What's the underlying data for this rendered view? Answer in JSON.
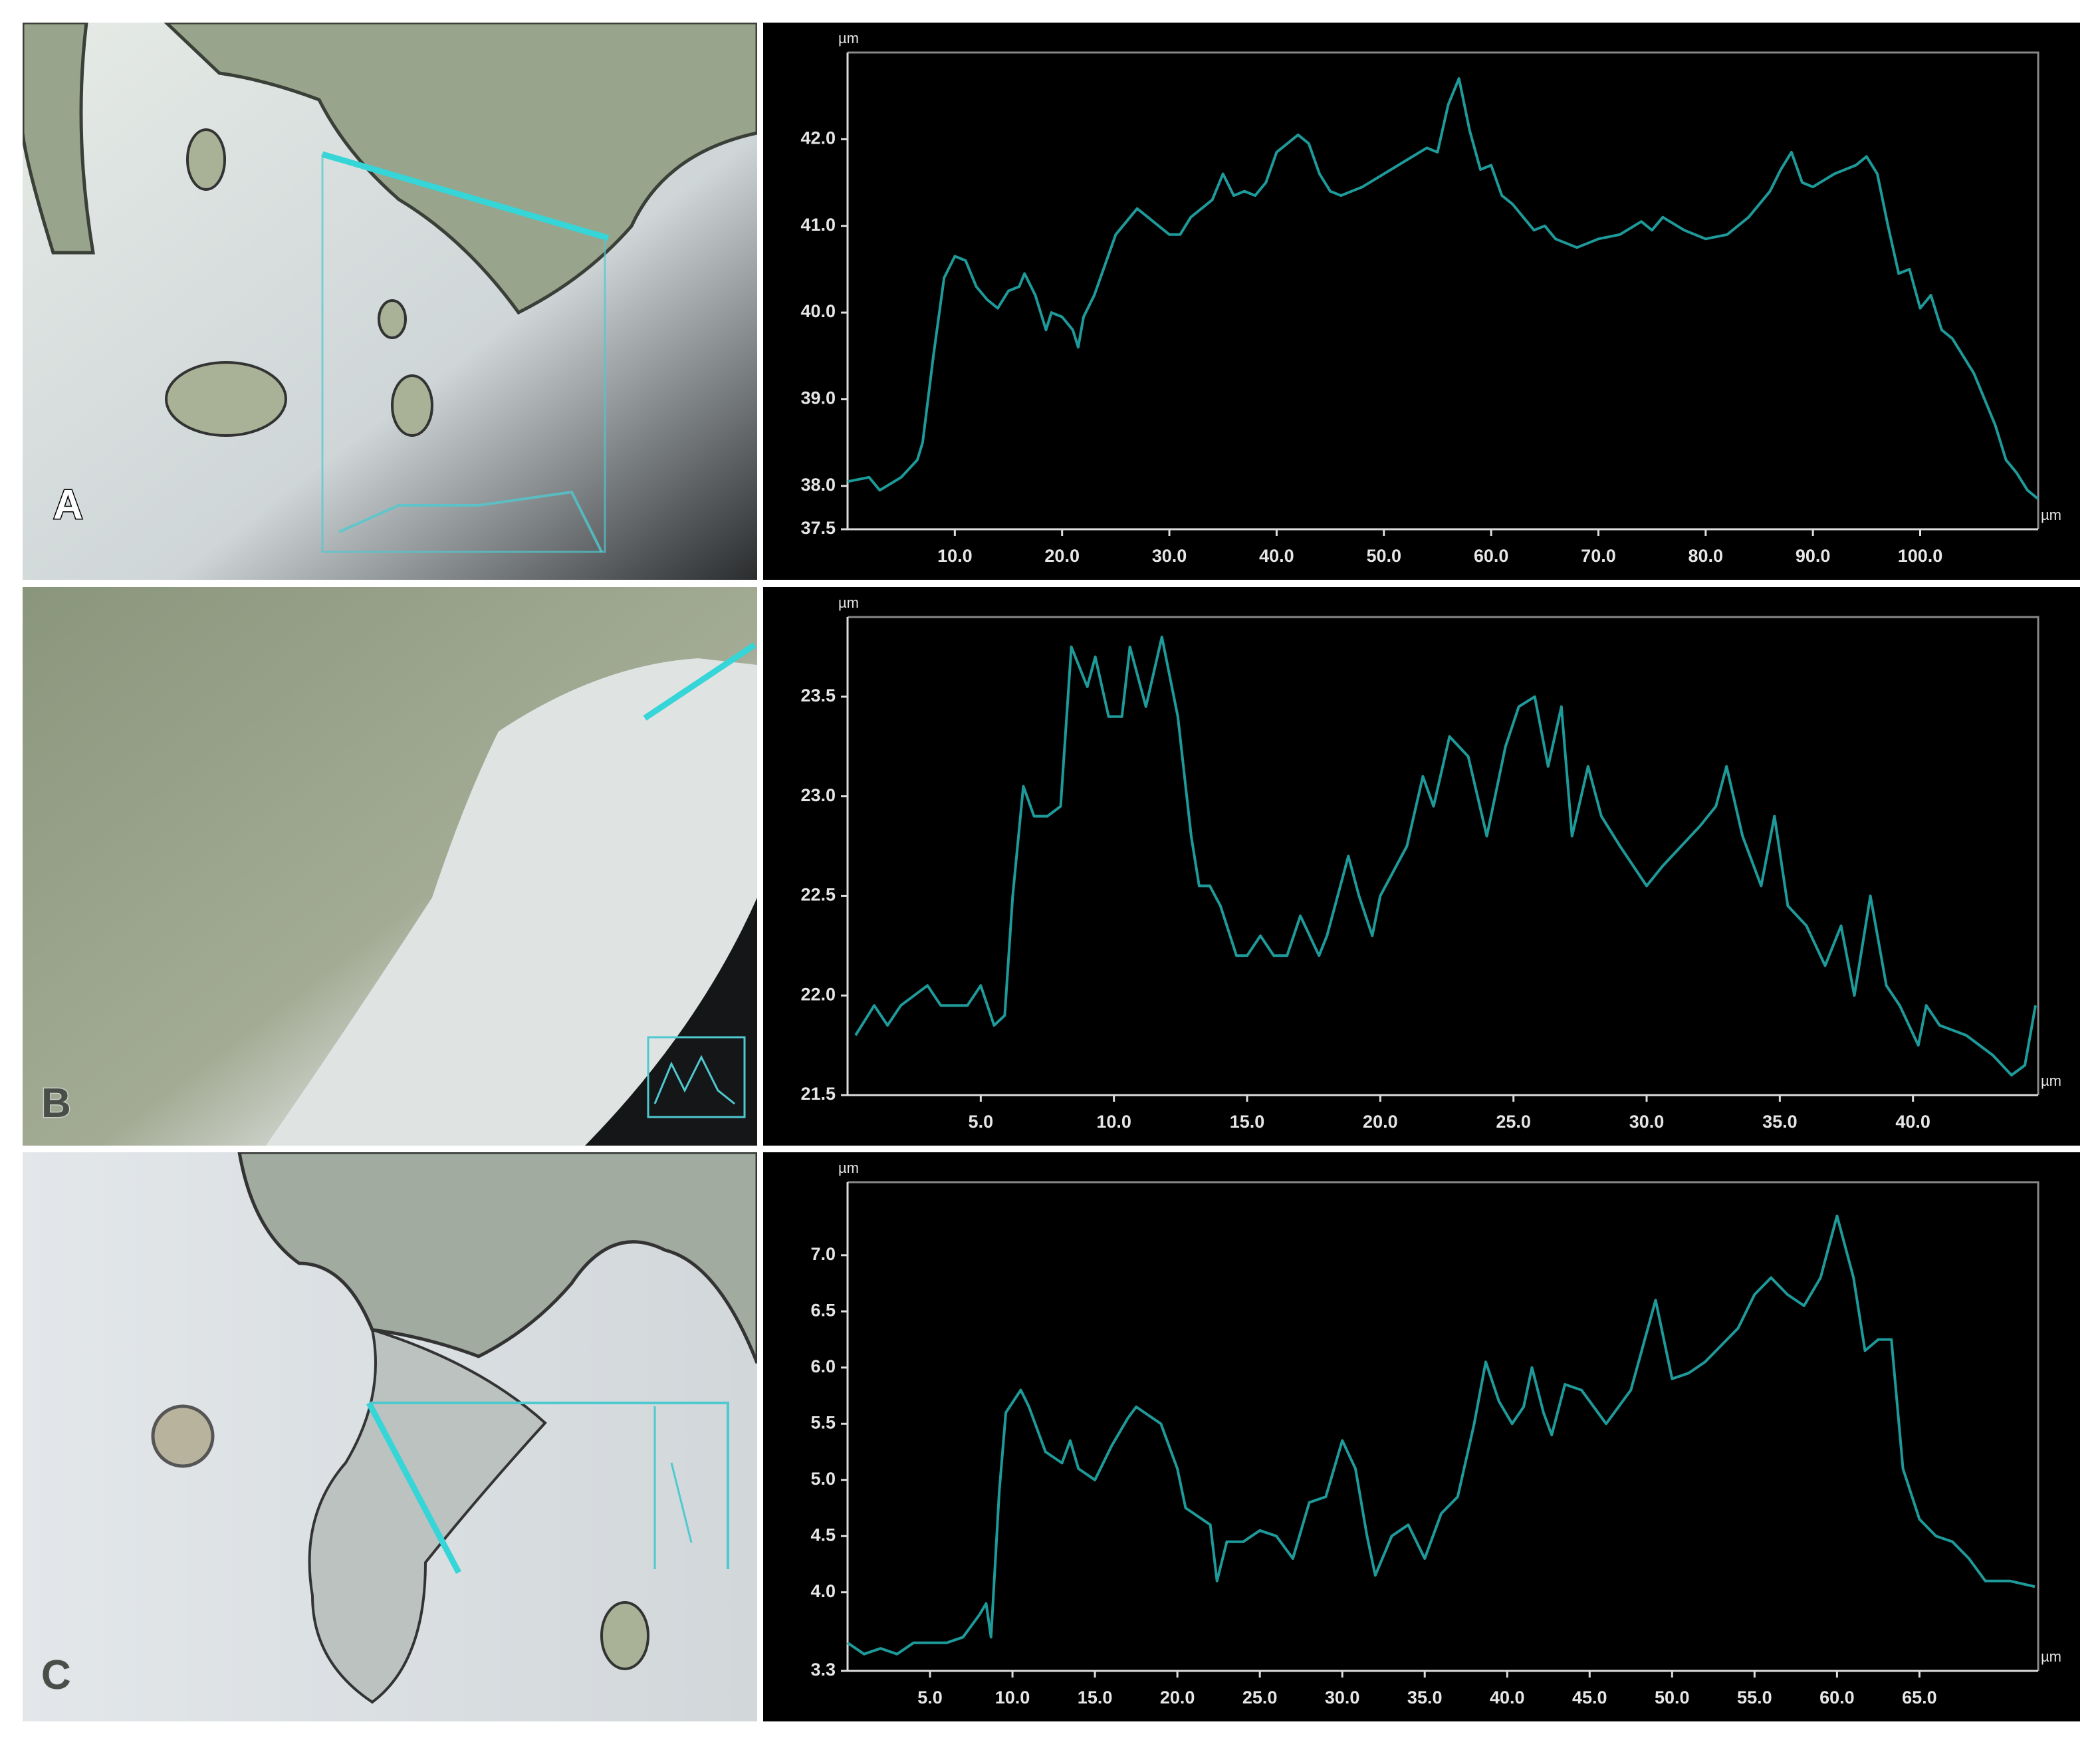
{
  "chart_data": [
    {
      "type": "line",
      "panel": "A",
      "y_label": "µm",
      "x_label": "µm",
      "color": "#1e9a9a",
      "xlim": [
        0,
        111
      ],
      "ylim": [
        37.5,
        43.0
      ],
      "xticks": [
        {
          "value": 10,
          "label": "10.0"
        },
        {
          "value": 20,
          "label": "20.0"
        },
        {
          "value": 30,
          "label": "30.0"
        },
        {
          "value": 40,
          "label": "40.0"
        },
        {
          "value": 50,
          "label": "50.0"
        },
        {
          "value": 60,
          "label": "60.0"
        },
        {
          "value": 70,
          "label": "70.0"
        },
        {
          "value": 80,
          "label": "80.0"
        },
        {
          "value": 90,
          "label": "90.0"
        },
        {
          "value": 100,
          "label": "100.0"
        }
      ],
      "yticks": [
        37.5,
        {
          "value": 38,
          "label": "38.0"
        },
        {
          "value": 39,
          "label": "39.0"
        },
        {
          "value": 40,
          "label": "40.0"
        },
        {
          "value": 41,
          "label": "41.0"
        },
        {
          "value": 42,
          "label": "42.0"
        }
      ],
      "x": [
        0,
        2,
        3,
        5,
        6.5,
        7,
        8,
        9,
        10,
        11,
        12,
        13,
        14,
        15,
        16,
        16.5,
        17.5,
        18.5,
        19,
        20,
        21,
        21.5,
        22,
        23,
        25,
        27,
        28,
        30,
        31,
        32,
        34,
        35,
        36,
        37,
        38,
        39,
        40,
        42,
        43,
        44,
        45,
        46,
        48,
        50,
        52,
        54,
        55,
        56,
        57,
        58,
        59,
        60,
        61,
        62,
        63,
        64,
        65,
        66,
        68,
        70,
        72,
        74,
        75,
        76,
        78,
        80,
        82,
        84,
        86,
        87,
        88,
        89,
        90,
        92,
        94,
        95,
        96,
        97,
        98,
        99,
        100,
        101,
        102,
        103,
        105,
        107,
        108,
        109,
        110,
        111
      ],
      "values": [
        38.05,
        38.1,
        37.95,
        38.1,
        38.3,
        38.5,
        39.5,
        40.4,
        40.65,
        40.6,
        40.3,
        40.15,
        40.05,
        40.25,
        40.3,
        40.45,
        40.2,
        39.8,
        40.0,
        39.95,
        39.8,
        39.6,
        39.95,
        40.2,
        40.9,
        41.2,
        41.1,
        40.9,
        40.9,
        41.1,
        41.3,
        41.6,
        41.35,
        41.4,
        41.35,
        41.5,
        41.85,
        42.05,
        41.95,
        41.6,
        41.4,
        41.35,
        41.45,
        41.6,
        41.75,
        41.9,
        41.85,
        42.4,
        42.7,
        42.1,
        41.65,
        41.7,
        41.35,
        41.25,
        41.1,
        40.95,
        41.0,
        40.85,
        40.75,
        40.85,
        40.9,
        41.05,
        40.95,
        41.1,
        40.95,
        40.85,
        40.9,
        41.1,
        41.4,
        41.65,
        41.85,
        41.5,
        41.45,
        41.6,
        41.7,
        41.8,
        41.6,
        41.0,
        40.45,
        40.5,
        40.05,
        40.2,
        39.8,
        39.7,
        39.3,
        38.7,
        38.3,
        38.15,
        37.95,
        37.85
      ]
    },
    {
      "type": "line",
      "panel": "B",
      "y_label": "µm",
      "x_label": "µm",
      "color": "#1e9a9a",
      "xlim": [
        0,
        44.7
      ],
      "ylim": [
        21.5,
        23.9
      ],
      "xticks": [
        {
          "value": 5,
          "label": "5.0"
        },
        {
          "value": 10,
          "label": "10.0"
        },
        {
          "value": 15,
          "label": "15.0"
        },
        {
          "value": 20,
          "label": "20.0"
        },
        {
          "value": 25,
          "label": "25.0"
        },
        {
          "value": 30,
          "label": "30.0"
        },
        {
          "value": 35,
          "label": "35.0"
        },
        {
          "value": 40,
          "label": "40.0"
        }
      ],
      "yticks": [
        21.5,
        {
          "value": 22,
          "label": "22.0"
        },
        22.5,
        {
          "value": 23,
          "label": "23.0"
        },
        23.5
      ],
      "x": [
        0.3,
        1,
        1.5,
        2,
        3,
        3.5,
        4.5,
        5,
        5.5,
        5.9,
        6.2,
        6.6,
        7,
        7.5,
        8,
        8.4,
        9,
        9.3,
        9.8,
        10.3,
        10.6,
        11.2,
        11.8,
        12.4,
        12.9,
        13.2,
        13.6,
        14,
        14.6,
        15,
        15.5,
        16,
        16.5,
        17,
        17.7,
        18,
        18.8,
        19.2,
        19.7,
        20,
        21,
        21.6,
        22,
        22.6,
        23.3,
        24,
        24.7,
        25.2,
        25.8,
        26.3,
        26.8,
        27.2,
        27.8,
        28.3,
        29,
        30,
        30.6,
        31.3,
        32,
        32.6,
        33,
        33.6,
        34.3,
        34.8,
        35.3,
        36,
        36.7,
        37.3,
        37.8,
        38.4,
        39,
        39.5,
        40.2,
        40.5,
        41,
        42,
        43,
        43.7,
        44.2,
        44.6
      ],
      "values": [
        21.8,
        21.95,
        21.85,
        21.95,
        22.05,
        21.95,
        21.95,
        22.05,
        21.85,
        21.9,
        22.5,
        23.05,
        22.9,
        22.9,
        22.95,
        23.75,
        23.55,
        23.7,
        23.4,
        23.4,
        23.75,
        23.45,
        23.8,
        23.4,
        22.8,
        22.55,
        22.55,
        22.45,
        22.2,
        22.2,
        22.3,
        22.2,
        22.2,
        22.4,
        22.2,
        22.3,
        22.7,
        22.5,
        22.3,
        22.5,
        22.75,
        23.1,
        22.95,
        23.3,
        23.2,
        22.8,
        23.25,
        23.45,
        23.5,
        23.15,
        23.45,
        22.8,
        23.15,
        22.9,
        22.75,
        22.55,
        22.65,
        22.75,
        22.85,
        22.95,
        23.15,
        22.8,
        22.55,
        22.9,
        22.45,
        22.35,
        22.15,
        22.35,
        22.0,
        22.5,
        22.05,
        21.95,
        21.75,
        21.95,
        21.85,
        21.8,
        21.7,
        21.6,
        21.65,
        21.95
      ]
    },
    {
      "type": "line",
      "panel": "C",
      "y_label": "µm",
      "x_label": "µm",
      "color": "#1e9a9a",
      "xlim": [
        0,
        72.2
      ],
      "ylim": [
        3.3,
        7.65
      ],
      "xticks": [
        {
          "value": 5,
          "label": "5.0"
        },
        {
          "value": 10,
          "label": "10.0"
        },
        {
          "value": 15,
          "label": "15.0"
        },
        {
          "value": 20,
          "label": "20.0"
        },
        {
          "value": 25,
          "label": "25.0"
        },
        {
          "value": 30,
          "label": "30.0"
        },
        {
          "value": 35,
          "label": "35.0"
        },
        {
          "value": 40,
          "label": "40.0"
        },
        {
          "value": 45,
          "label": "45.0"
        },
        {
          "value": 50,
          "label": "50.0"
        },
        {
          "value": 55,
          "label": "55.0"
        },
        {
          "value": 60,
          "label": "60.0"
        },
        {
          "value": 65,
          "label": "65.0"
        }
      ],
      "yticks": [
        3.3,
        {
          "value": 4,
          "label": "4.0"
        },
        4.5,
        {
          "value": 5,
          "label": "5.0"
        },
        5.5,
        {
          "value": 6,
          "label": "6.0"
        },
        6.5,
        {
          "value": 7,
          "label": "7.0"
        }
      ],
      "x": [
        0,
        1,
        2,
        3,
        4,
        5,
        6,
        7,
        8,
        8.4,
        8.7,
        9.2,
        9.6,
        10.5,
        11,
        12,
        13,
        13.5,
        14,
        15,
        16,
        17,
        17.5,
        18,
        19,
        20,
        20.5,
        21,
        22,
        22.4,
        23,
        24,
        25,
        26,
        27,
        28,
        29,
        30,
        30.8,
        31.5,
        32,
        33,
        34,
        35,
        36,
        37,
        38,
        38.7,
        39.5,
        40.3,
        41,
        41.5,
        42.2,
        42.7,
        43.5,
        44.5,
        46,
        47.5,
        49,
        50,
        51,
        52,
        53,
        54,
        55,
        56,
        57,
        58,
        59,
        60,
        61,
        61.7,
        62.5,
        63.3,
        64,
        65,
        66,
        67,
        68,
        69,
        70.5,
        72
      ],
      "values": [
        3.55,
        3.45,
        3.5,
        3.45,
        3.55,
        3.55,
        3.55,
        3.6,
        3.8,
        3.9,
        3.6,
        4.9,
        5.6,
        5.8,
        5.65,
        5.25,
        5.15,
        5.35,
        5.1,
        5.0,
        5.3,
        5.55,
        5.65,
        5.6,
        5.5,
        5.1,
        4.75,
        4.7,
        4.6,
        4.1,
        4.45,
        4.45,
        4.55,
        4.5,
        4.3,
        4.8,
        4.85,
        5.35,
        5.1,
        4.5,
        4.15,
        4.5,
        4.6,
        4.3,
        4.7,
        4.85,
        5.5,
        6.05,
        5.7,
        5.5,
        5.65,
        6.0,
        5.6,
        5.4,
        5.85,
        5.8,
        5.5,
        5.8,
        6.6,
        5.9,
        5.95,
        6.05,
        6.2,
        6.35,
        6.65,
        6.8,
        6.65,
        6.55,
        6.8,
        7.35,
        6.8,
        6.15,
        6.25,
        6.25,
        5.1,
        4.65,
        4.5,
        4.45,
        4.3,
        4.1,
        4.1,
        4.05
      ]
    }
  ]
}
